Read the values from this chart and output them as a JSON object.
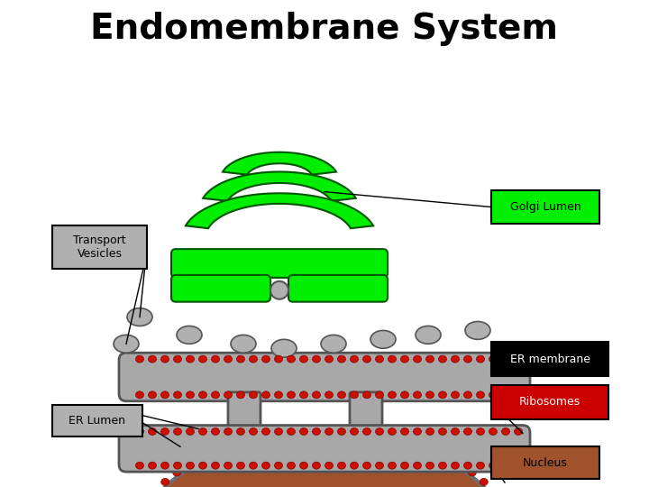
{
  "title": "Endomembrane System",
  "title_fontsize": 28,
  "bg_color": "#00FFFF",
  "white_bg": "#FFFFFF",
  "golgi_color": "#00EE00",
  "golgi_outline": "#005500",
  "er_color": "#A8A8A8",
  "er_outline": "#555555",
  "nucleus_color": "#A0522D",
  "nucleus_outline": "#707070",
  "ribosome_color": "#CC1100",
  "ribosome_outline": "#880000",
  "vesicle_fill": "#B0B0B0",
  "vesicle_outline": "#555555",
  "label_golgi": "Golgi Lumen",
  "label_golgi_bg": "#00EE00",
  "label_golgi_fg": "black",
  "label_transport": "Transport\nVesicles",
  "label_transport_bg": "#B0B0B0",
  "label_er_membrane": "ER membrane",
  "label_er_membrane_bg": "#000000",
  "label_er_membrane_fg": "white",
  "label_ribosomes": "Ribosomes",
  "label_ribosomes_bg": "#CC0000",
  "label_ribosomes_fg": "white",
  "label_er_lumen": "ER Lumen",
  "label_er_lumen_bg": "#B0B0B0",
  "label_nucleus": "Nucleus",
  "label_nucleus_bg": "#A0522D",
  "label_nucleus_fg": "black"
}
